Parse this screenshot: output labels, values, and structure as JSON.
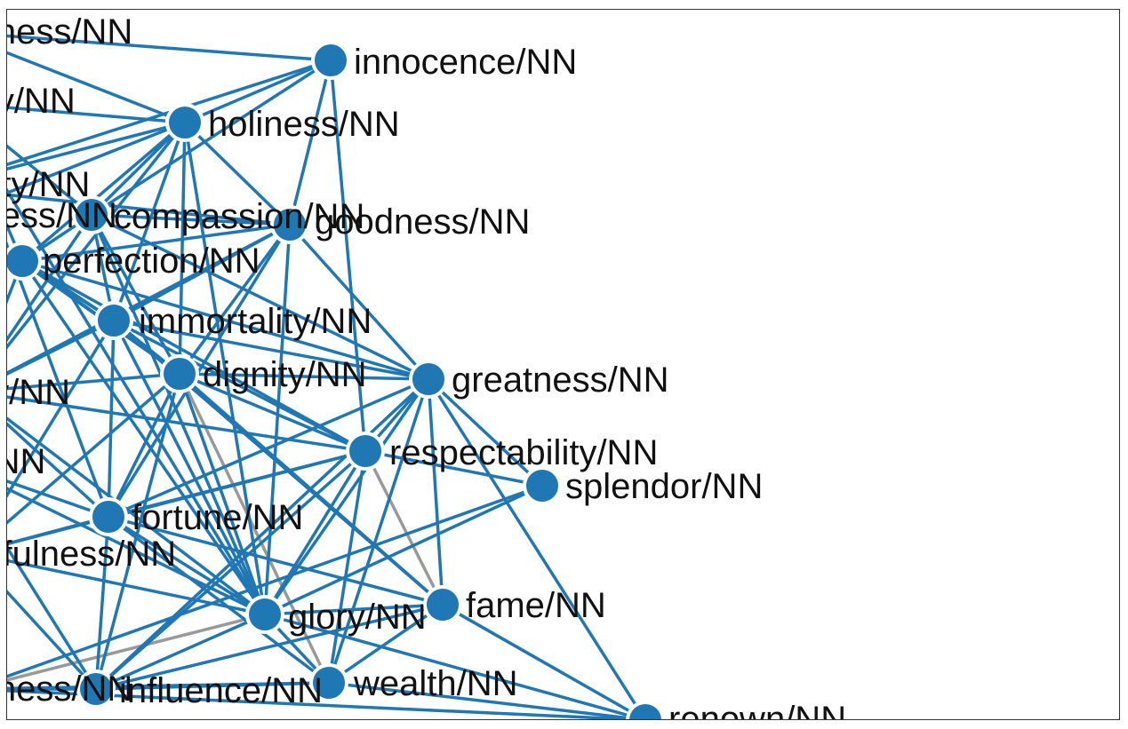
{
  "graph": {
    "edge_color": "#1f77b4",
    "muted_edge_color": "#999999",
    "node_color": "#1f77b4",
    "node_stroke": "#ffffff",
    "nodes": [
      {
        "id": "innocence",
        "label": "innocence/NN"
      },
      {
        "id": "holiness",
        "label": "holiness/NN"
      },
      {
        "id": "compassion",
        "label": "compassion/NN"
      },
      {
        "id": "goodness",
        "label": "goodness/NN"
      },
      {
        "id": "perfection",
        "label": "perfection/NN"
      },
      {
        "id": "immortality",
        "label": "immortality/NN"
      },
      {
        "id": "dignity",
        "label": "dignity/NN"
      },
      {
        "id": "greatness",
        "label": "greatness/NN"
      },
      {
        "id": "respectability",
        "label": "respectability/NN"
      },
      {
        "id": "splendor",
        "label": "splendor/NN"
      },
      {
        "id": "fortune",
        "label": "fortune/NN"
      },
      {
        "id": "glory",
        "label": "glory/NN"
      },
      {
        "id": "fame",
        "label": "fame/NN"
      },
      {
        "id": "wealth",
        "label": "wealth/NN"
      },
      {
        "id": "influence",
        "label": "influence/NN"
      },
      {
        "id": "renown",
        "label": "renown/NN"
      },
      {
        "id": "sweetness",
        "label": "sweetness/NN"
      },
      {
        "id": "beauty",
        "label": "beauty/NN"
      },
      {
        "id": "usefulness",
        "label": "usefulness/NN"
      },
      {
        "id": "nobleness",
        "label": "nobleness/NN"
      },
      {
        "id": "purity",
        "label": "purity/NN"
      },
      {
        "id": "piety",
        "label": "piety/NN"
      },
      {
        "id": "nobility",
        "label": "nobility/NN"
      },
      {
        "id": "happiness",
        "label": "happiness/NN"
      }
    ],
    "edges": [
      [
        "innocence",
        "holiness",
        false
      ],
      [
        "innocence",
        "compassion",
        false
      ],
      [
        "innocence",
        "goodness",
        false
      ],
      [
        "innocence",
        "respectability",
        false
      ],
      [
        "innocence",
        "nobleness",
        false
      ],
      [
        "innocence",
        "piety",
        false
      ],
      [
        "holiness",
        "compassion",
        false
      ],
      [
        "holiness",
        "goodness",
        false
      ],
      [
        "holiness",
        "perfection",
        false
      ],
      [
        "holiness",
        "immortality",
        false
      ],
      [
        "holiness",
        "dignity",
        false
      ],
      [
        "holiness",
        "sweetness",
        false
      ],
      [
        "holiness",
        "nobleness",
        false
      ],
      [
        "holiness",
        "piety",
        false
      ],
      [
        "holiness",
        "purity",
        false
      ],
      [
        "holiness",
        "beauty",
        false
      ],
      [
        "holiness",
        "glory",
        false
      ],
      [
        "compassion",
        "goodness",
        false
      ],
      [
        "compassion",
        "perfection",
        false
      ],
      [
        "compassion",
        "immortality",
        false
      ],
      [
        "compassion",
        "dignity",
        false
      ],
      [
        "compassion",
        "beauty",
        false
      ],
      [
        "compassion",
        "purity",
        false
      ],
      [
        "compassion",
        "glory",
        false
      ],
      [
        "compassion",
        "greatness",
        false
      ],
      [
        "goodness",
        "perfection",
        false
      ],
      [
        "goodness",
        "immortality",
        false
      ],
      [
        "goodness",
        "dignity",
        false
      ],
      [
        "goodness",
        "greatness",
        false
      ],
      [
        "goodness",
        "glory",
        false
      ],
      [
        "goodness",
        "fortune",
        false
      ],
      [
        "goodness",
        "beauty",
        false
      ],
      [
        "perfection",
        "immortality",
        false
      ],
      [
        "perfection",
        "dignity",
        false
      ],
      [
        "perfection",
        "greatness",
        false
      ],
      [
        "perfection",
        "respectability",
        false
      ],
      [
        "perfection",
        "glory",
        false
      ],
      [
        "perfection",
        "beauty",
        false
      ],
      [
        "perfection",
        "sweetness",
        false
      ],
      [
        "perfection",
        "purity",
        false
      ],
      [
        "immortality",
        "dignity",
        false
      ],
      [
        "immortality",
        "greatness",
        false
      ],
      [
        "immortality",
        "respectability",
        false
      ],
      [
        "immortality",
        "glory",
        false
      ],
      [
        "immortality",
        "fortune",
        false
      ],
      [
        "immortality",
        "beauty",
        false
      ],
      [
        "immortality",
        "usefulness",
        false
      ],
      [
        "immortality",
        "fame",
        false
      ],
      [
        "dignity",
        "greatness",
        false
      ],
      [
        "dignity",
        "respectability",
        false
      ],
      [
        "dignity",
        "glory",
        false
      ],
      [
        "dignity",
        "fortune",
        false
      ],
      [
        "dignity",
        "fame",
        false
      ],
      [
        "dignity",
        "beauty",
        false
      ],
      [
        "dignity",
        "usefulness",
        false
      ],
      [
        "dignity",
        "wealth",
        true
      ],
      [
        "dignity",
        "influence",
        false
      ],
      [
        "greatness",
        "respectability",
        false
      ],
      [
        "greatness",
        "splendor",
        false
      ],
      [
        "greatness",
        "glory",
        false
      ],
      [
        "greatness",
        "fame",
        false
      ],
      [
        "greatness",
        "wealth",
        false
      ],
      [
        "greatness",
        "influence",
        false
      ],
      [
        "greatness",
        "renown",
        false
      ],
      [
        "greatness",
        "fortune",
        false
      ],
      [
        "respectability",
        "splendor",
        false
      ],
      [
        "respectability",
        "glory",
        false
      ],
      [
        "respectability",
        "fame",
        true
      ],
      [
        "respectability",
        "wealth",
        false
      ],
      [
        "respectability",
        "influence",
        false
      ],
      [
        "respectability",
        "fortune",
        false
      ],
      [
        "respectability",
        "usefulness",
        false
      ],
      [
        "respectability",
        "beauty",
        false
      ],
      [
        "splendor",
        "glory",
        false
      ],
      [
        "splendor",
        "happiness",
        false
      ],
      [
        "fortune",
        "glory",
        false
      ],
      [
        "fortune",
        "wealth",
        false
      ],
      [
        "fortune",
        "influence",
        false
      ],
      [
        "fortune",
        "usefulness",
        false
      ],
      [
        "fortune",
        "beauty",
        false
      ],
      [
        "fortune",
        "fame",
        false
      ],
      [
        "glory",
        "fame",
        false
      ],
      [
        "glory",
        "wealth",
        false
      ],
      [
        "glory",
        "influence",
        false
      ],
      [
        "glory",
        "renown",
        false
      ],
      [
        "glory",
        "usefulness",
        false
      ],
      [
        "glory",
        "happiness",
        true
      ],
      [
        "fame",
        "wealth",
        false
      ],
      [
        "fame",
        "influence",
        false
      ],
      [
        "fame",
        "renown",
        false
      ],
      [
        "wealth",
        "influence",
        false
      ],
      [
        "wealth",
        "renown",
        false
      ],
      [
        "wealth",
        "happiness",
        false
      ],
      [
        "influence",
        "happiness",
        false
      ],
      [
        "influence",
        "usefulness",
        false
      ],
      [
        "sweetness",
        "beauty",
        false
      ],
      [
        "sweetness",
        "purity",
        false
      ],
      [
        "sweetness",
        "immortality",
        false
      ],
      [
        "sweetness",
        "dignity",
        false
      ],
      [
        "beauty",
        "purity",
        false
      ],
      [
        "beauty",
        "usefulness",
        false
      ],
      [
        "beauty",
        "glory",
        false
      ],
      [
        "nobleness",
        "piety",
        false
      ],
      [
        "nobleness",
        "purity",
        false
      ],
      [
        "piety",
        "purity",
        false
      ],
      [
        "piety",
        "goodness",
        false
      ],
      [
        "purity",
        "glory",
        false
      ],
      [
        "purity",
        "fortune",
        false
      ],
      [
        "nobility",
        "usefulness",
        false
      ],
      [
        "nobility",
        "glory",
        false
      ],
      [
        "nobility",
        "influence",
        false
      ],
      [
        "nobility",
        "fortune",
        false
      ],
      [
        "happiness",
        "usefulness",
        false
      ],
      [
        "happiness",
        "renown",
        false
      ]
    ]
  }
}
